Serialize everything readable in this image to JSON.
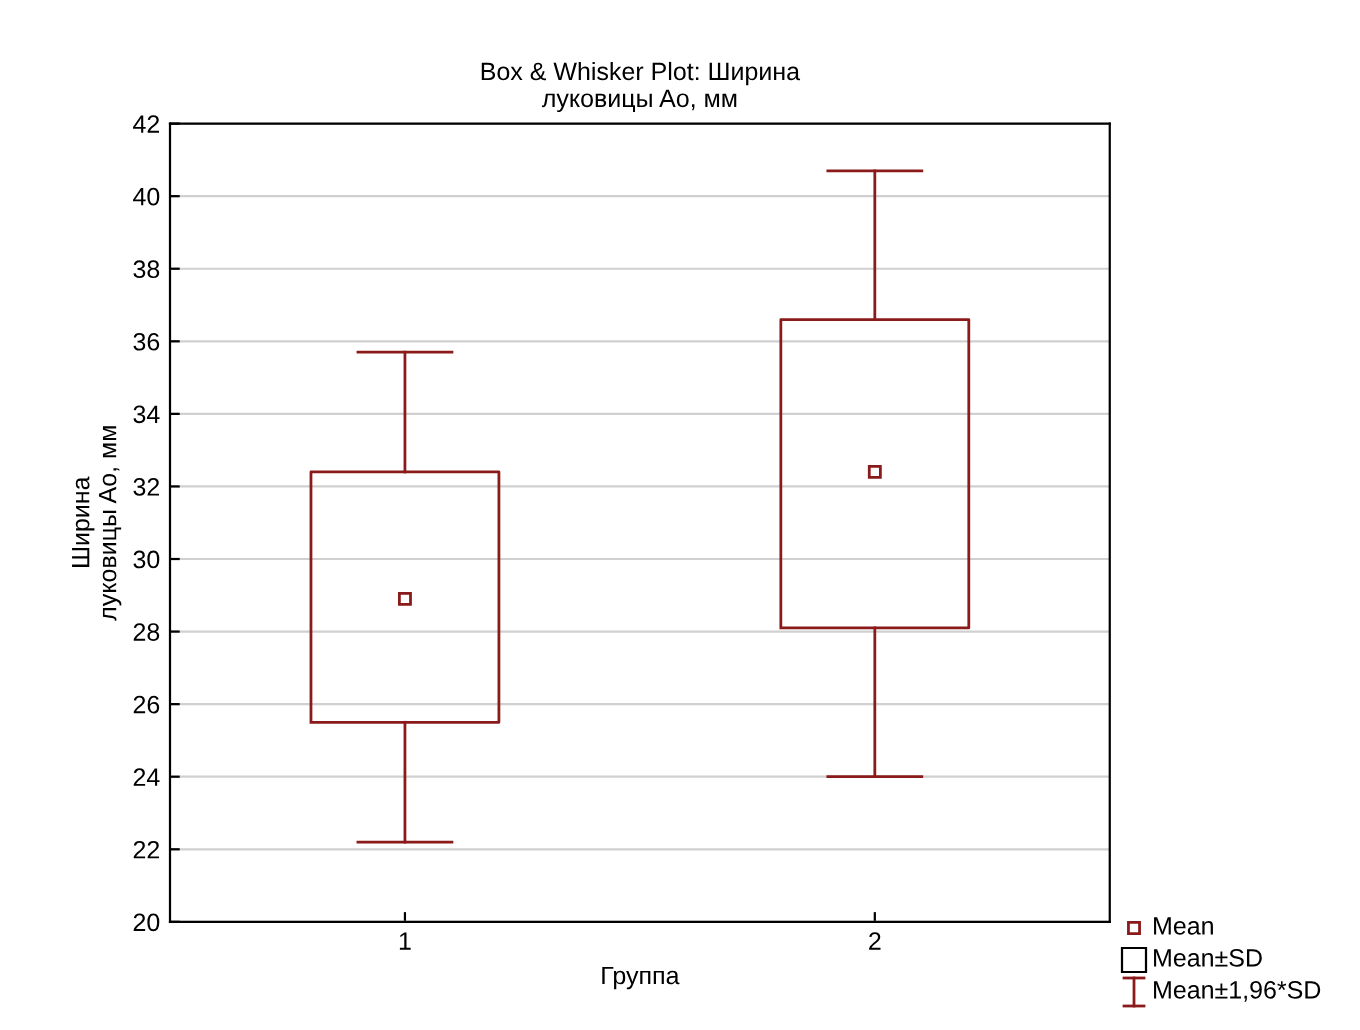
{
  "chart_data": {
    "type": "box",
    "title": "Box & Whisker Plot: Ширина\nлуковицы Ao, мм",
    "xlabel": "Группа",
    "ylabel": "Ширина\nлуковицы Ao, мм",
    "categories": [
      "1",
      "2"
    ],
    "series": [
      {
        "color": "#8b1a1a",
        "boxes": [
          {
            "low": 22.2,
            "q1": 25.5,
            "q3": 32.4,
            "high": 35.7,
            "mean": 28.9
          },
          {
            "low": 24.0,
            "q1": 28.1,
            "q3": 36.6,
            "high": 40.7,
            "mean": 32.4
          }
        ]
      }
    ],
    "ylim": [
      20,
      42
    ],
    "yticks": [
      20,
      22,
      24,
      26,
      28,
      30,
      32,
      34,
      36,
      38,
      40,
      42
    ],
    "grid": "y",
    "annotations": [
      "Mean",
      "Mean±SD",
      "Mean±1,96*SD"
    ]
  }
}
